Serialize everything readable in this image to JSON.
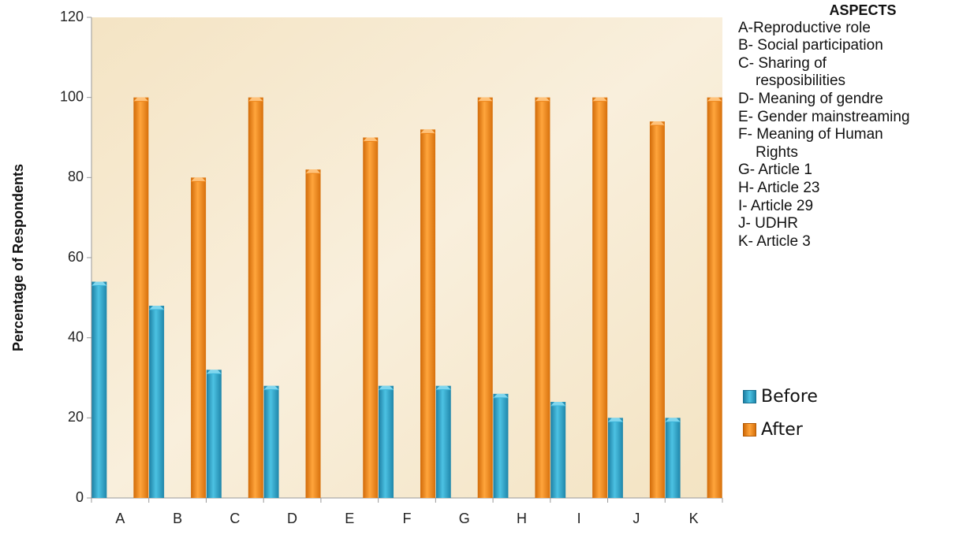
{
  "chart_data": {
    "type": "bar",
    "title": "",
    "xlabel": "",
    "ylabel": "Percentage of Respondents",
    "ylim": [
      0,
      120
    ],
    "yticks": [
      0,
      20,
      40,
      60,
      80,
      100,
      120
    ],
    "grid": false,
    "legend_position": "right",
    "categories": [
      "A",
      "B",
      "C",
      "D",
      "E",
      "F",
      "G",
      "H",
      "I",
      "J",
      "K"
    ],
    "series": [
      {
        "name": "Before",
        "color": "#3aaed0",
        "values": [
          54,
          48,
          32,
          28,
          0,
          28,
          28,
          26,
          24,
          20,
          20
        ]
      },
      {
        "name": "After",
        "color": "#f28c1e",
        "values": [
          100,
          80,
          100,
          82,
          90,
          92,
          100,
          100,
          100,
          94,
          100
        ]
      }
    ],
    "plot_background": "#f6ead2"
  },
  "aspects": {
    "title": "ASPECTS",
    "items": [
      "A-Reproductive role",
      "B- Social participation",
      "C- Sharing of resposibilities",
      "D- Meaning of gendre",
      "E- Gender mainstreaming",
      "F- Meaning of Human Rights",
      "G- Article 1",
      "H- Article 23",
      "I- Article 29",
      "J- UDHR",
      "K- Article 3"
    ]
  }
}
